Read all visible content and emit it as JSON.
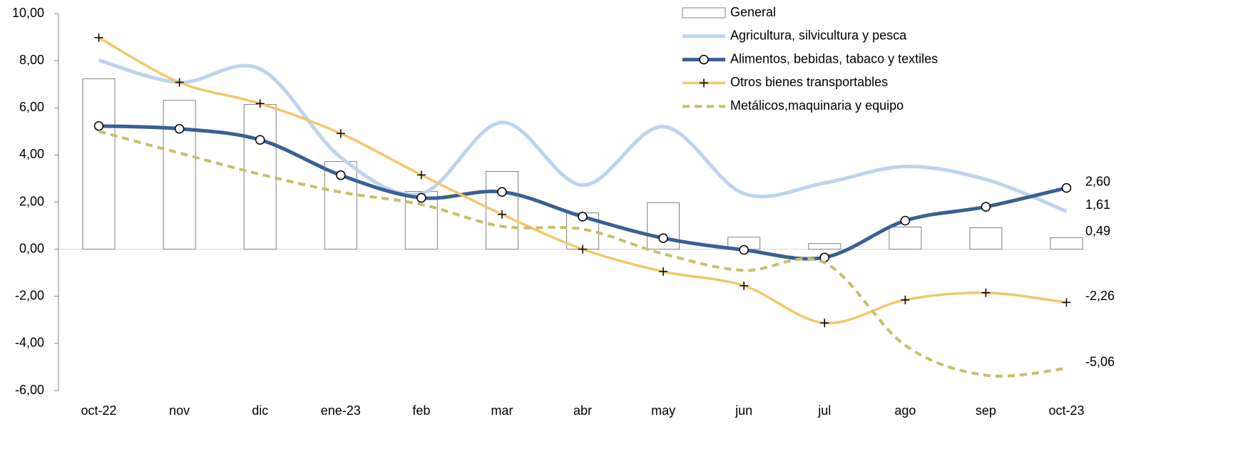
{
  "chart_data": {
    "type": "combo",
    "categories": [
      "oct-22",
      "nov",
      "dic",
      "ene-23",
      "feb",
      "mar",
      "abr",
      "may",
      "jun",
      "jul",
      "ago",
      "sep",
      "oct-23"
    ],
    "ylim": [
      -6,
      10
    ],
    "yticks": [
      {
        "value": -6,
        "label": "-6,00"
      },
      {
        "value": -4,
        "label": "-4,00"
      },
      {
        "value": -2,
        "label": "-2,00"
      },
      {
        "value": 0,
        "label": "0,00"
      },
      {
        "value": 2,
        "label": "2,00"
      },
      {
        "value": 4,
        "label": "4,00"
      },
      {
        "value": 6,
        "label": "6,00"
      },
      {
        "value": 8,
        "label": "8,00"
      },
      {
        "value": 10,
        "label": "10,00"
      }
    ],
    "legend": "top-right",
    "series": [
      {
        "name": "General",
        "type": "bar",
        "color": "#808080",
        "values": [
          7.23,
          6.32,
          6.14,
          3.72,
          2.45,
          3.3,
          1.54,
          1.97,
          0.51,
          0.24,
          0.94,
          0.91,
          0.49
        ],
        "value_labels": [
          null,
          null,
          null,
          null,
          null,
          null,
          null,
          null,
          null,
          null,
          null,
          null,
          "0,49"
        ]
      },
      {
        "name": "Agricultura, silvicultura y pesca",
        "type": "line",
        "color": "#bdd3ee",
        "width": 5,
        "values": [
          8.02,
          7.08,
          7.65,
          3.9,
          2.36,
          5.38,
          2.72,
          5.2,
          2.36,
          2.81,
          3.51,
          2.96,
          1.61
        ],
        "value_labels": [
          null,
          null,
          null,
          null,
          null,
          null,
          null,
          null,
          null,
          null,
          null,
          null,
          "1,61"
        ]
      },
      {
        "name": "Alimentos, bebidas, tabaco y textiles",
        "type": "line",
        "color": "#3a5f94",
        "width": 5,
        "marker": "circle",
        "values": [
          5.23,
          5.11,
          4.64,
          3.14,
          2.18,
          2.43,
          1.38,
          0.47,
          -0.03,
          -0.35,
          1.21,
          1.8,
          2.6
        ],
        "value_labels": [
          null,
          null,
          null,
          null,
          null,
          null,
          null,
          null,
          null,
          null,
          null,
          null,
          "2,60"
        ]
      },
      {
        "name": "Otros bienes transportables",
        "type": "line",
        "color": "#f2c76a",
        "width": 3.5,
        "marker": "plus",
        "values": [
          8.98,
          7.08,
          6.18,
          4.91,
          3.15,
          1.48,
          0,
          -0.95,
          -1.55,
          -3.13,
          -2.15,
          -1.85,
          -2.26
        ],
        "value_labels": [
          null,
          null,
          null,
          null,
          null,
          null,
          null,
          null,
          null,
          null,
          null,
          null,
          "-2,26"
        ]
      },
      {
        "name": "Metálicos,maquinaria y equipo",
        "type": "line",
        "color": "#c7be68",
        "width": 4,
        "dash": true,
        "values": [
          5.0,
          4.08,
          3.18,
          2.42,
          1.9,
          0.97,
          0.85,
          -0.2,
          -0.9,
          -0.57,
          -4.08,
          -5.35,
          -5.06
        ],
        "value_labels": [
          null,
          null,
          null,
          null,
          null,
          null,
          null,
          null,
          null,
          null,
          null,
          null,
          "-5,06"
        ]
      }
    ]
  }
}
